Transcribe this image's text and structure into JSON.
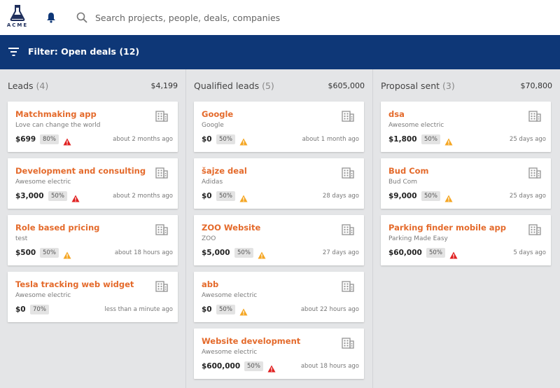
{
  "header": {
    "logo_text": "ACME",
    "search": {
      "placeholder": "Search projects, people, deals, companies"
    }
  },
  "filter": {
    "label": "Filter: Open deals (12)"
  },
  "colors": {
    "accent_orange": "#e46a2b",
    "navy": "#0e3777",
    "warn_red": "#e02020",
    "warn_yellow": "#f5a623"
  },
  "columns": [
    {
      "title": "Leads",
      "count": "(4)",
      "total": "$4,199",
      "cards": [
        {
          "title": "Matchmaking app",
          "company": "Love can change the world",
          "value": "$699",
          "prob": "80%",
          "warning": "red",
          "time": "about 2 months ago",
          "icon": "building-icon"
        },
        {
          "title": "Development and consulting",
          "company": "Awesome electric",
          "value": "$3,000",
          "prob": "50%",
          "warning": "red",
          "time": "about 2 months ago",
          "icon": "building-icon"
        },
        {
          "title": "Role based pricing",
          "company": "test",
          "value": "$500",
          "prob": "50%",
          "warning": "yellow",
          "time": "about 18 hours ago",
          "icon": "building-icon"
        },
        {
          "title": "Tesla tracking web widget",
          "company": "Awesome electric",
          "value": "$0",
          "prob": "70%",
          "warning": "none",
          "time": "less than a minute ago",
          "icon": "building-icon"
        }
      ]
    },
    {
      "title": "Qualified leads",
      "count": "(5)",
      "total": "$605,000",
      "cards": [
        {
          "title": "Google",
          "company": "Google",
          "value": "$0",
          "prob": "50%",
          "warning": "yellow",
          "time": "about 1 month ago",
          "icon": "building-icon"
        },
        {
          "title": "šajze deal",
          "company": "Adidas",
          "value": "$0",
          "prob": "50%",
          "warning": "yellow",
          "time": "28 days ago",
          "icon": "building-icon"
        },
        {
          "title": "ZOO Website",
          "company": "ZOO",
          "value": "$5,000",
          "prob": "50%",
          "warning": "yellow",
          "time": "27 days ago",
          "icon": "building-icon"
        },
        {
          "title": "abb",
          "company": "Awesome electric",
          "value": "$0",
          "prob": "50%",
          "warning": "yellow",
          "time": "about 22 hours ago",
          "icon": "building-icon"
        },
        {
          "title": "Website development",
          "company": "Awesome electric",
          "value": "$600,000",
          "prob": "50%",
          "warning": "red",
          "time": "about 18 hours ago",
          "icon": "building-icon"
        }
      ]
    },
    {
      "title": "Proposal sent",
      "count": "(3)",
      "total": "$70,800",
      "cards": [
        {
          "title": "dsa",
          "company": "Awesome electric",
          "value": "$1,800",
          "prob": "50%",
          "warning": "yellow",
          "time": "25 days ago",
          "icon": "building-icon"
        },
        {
          "title": "Bud Com",
          "company": "Bud Com",
          "value": "$9,000",
          "prob": "50%",
          "warning": "yellow",
          "time": "25 days ago",
          "icon": "building-icon"
        },
        {
          "title": "Parking finder mobile app",
          "company": "Parking Made Easy",
          "value": "$60,000",
          "prob": "50%",
          "warning": "red",
          "time": "5 days ago",
          "icon": "building-icon"
        }
      ]
    }
  ]
}
